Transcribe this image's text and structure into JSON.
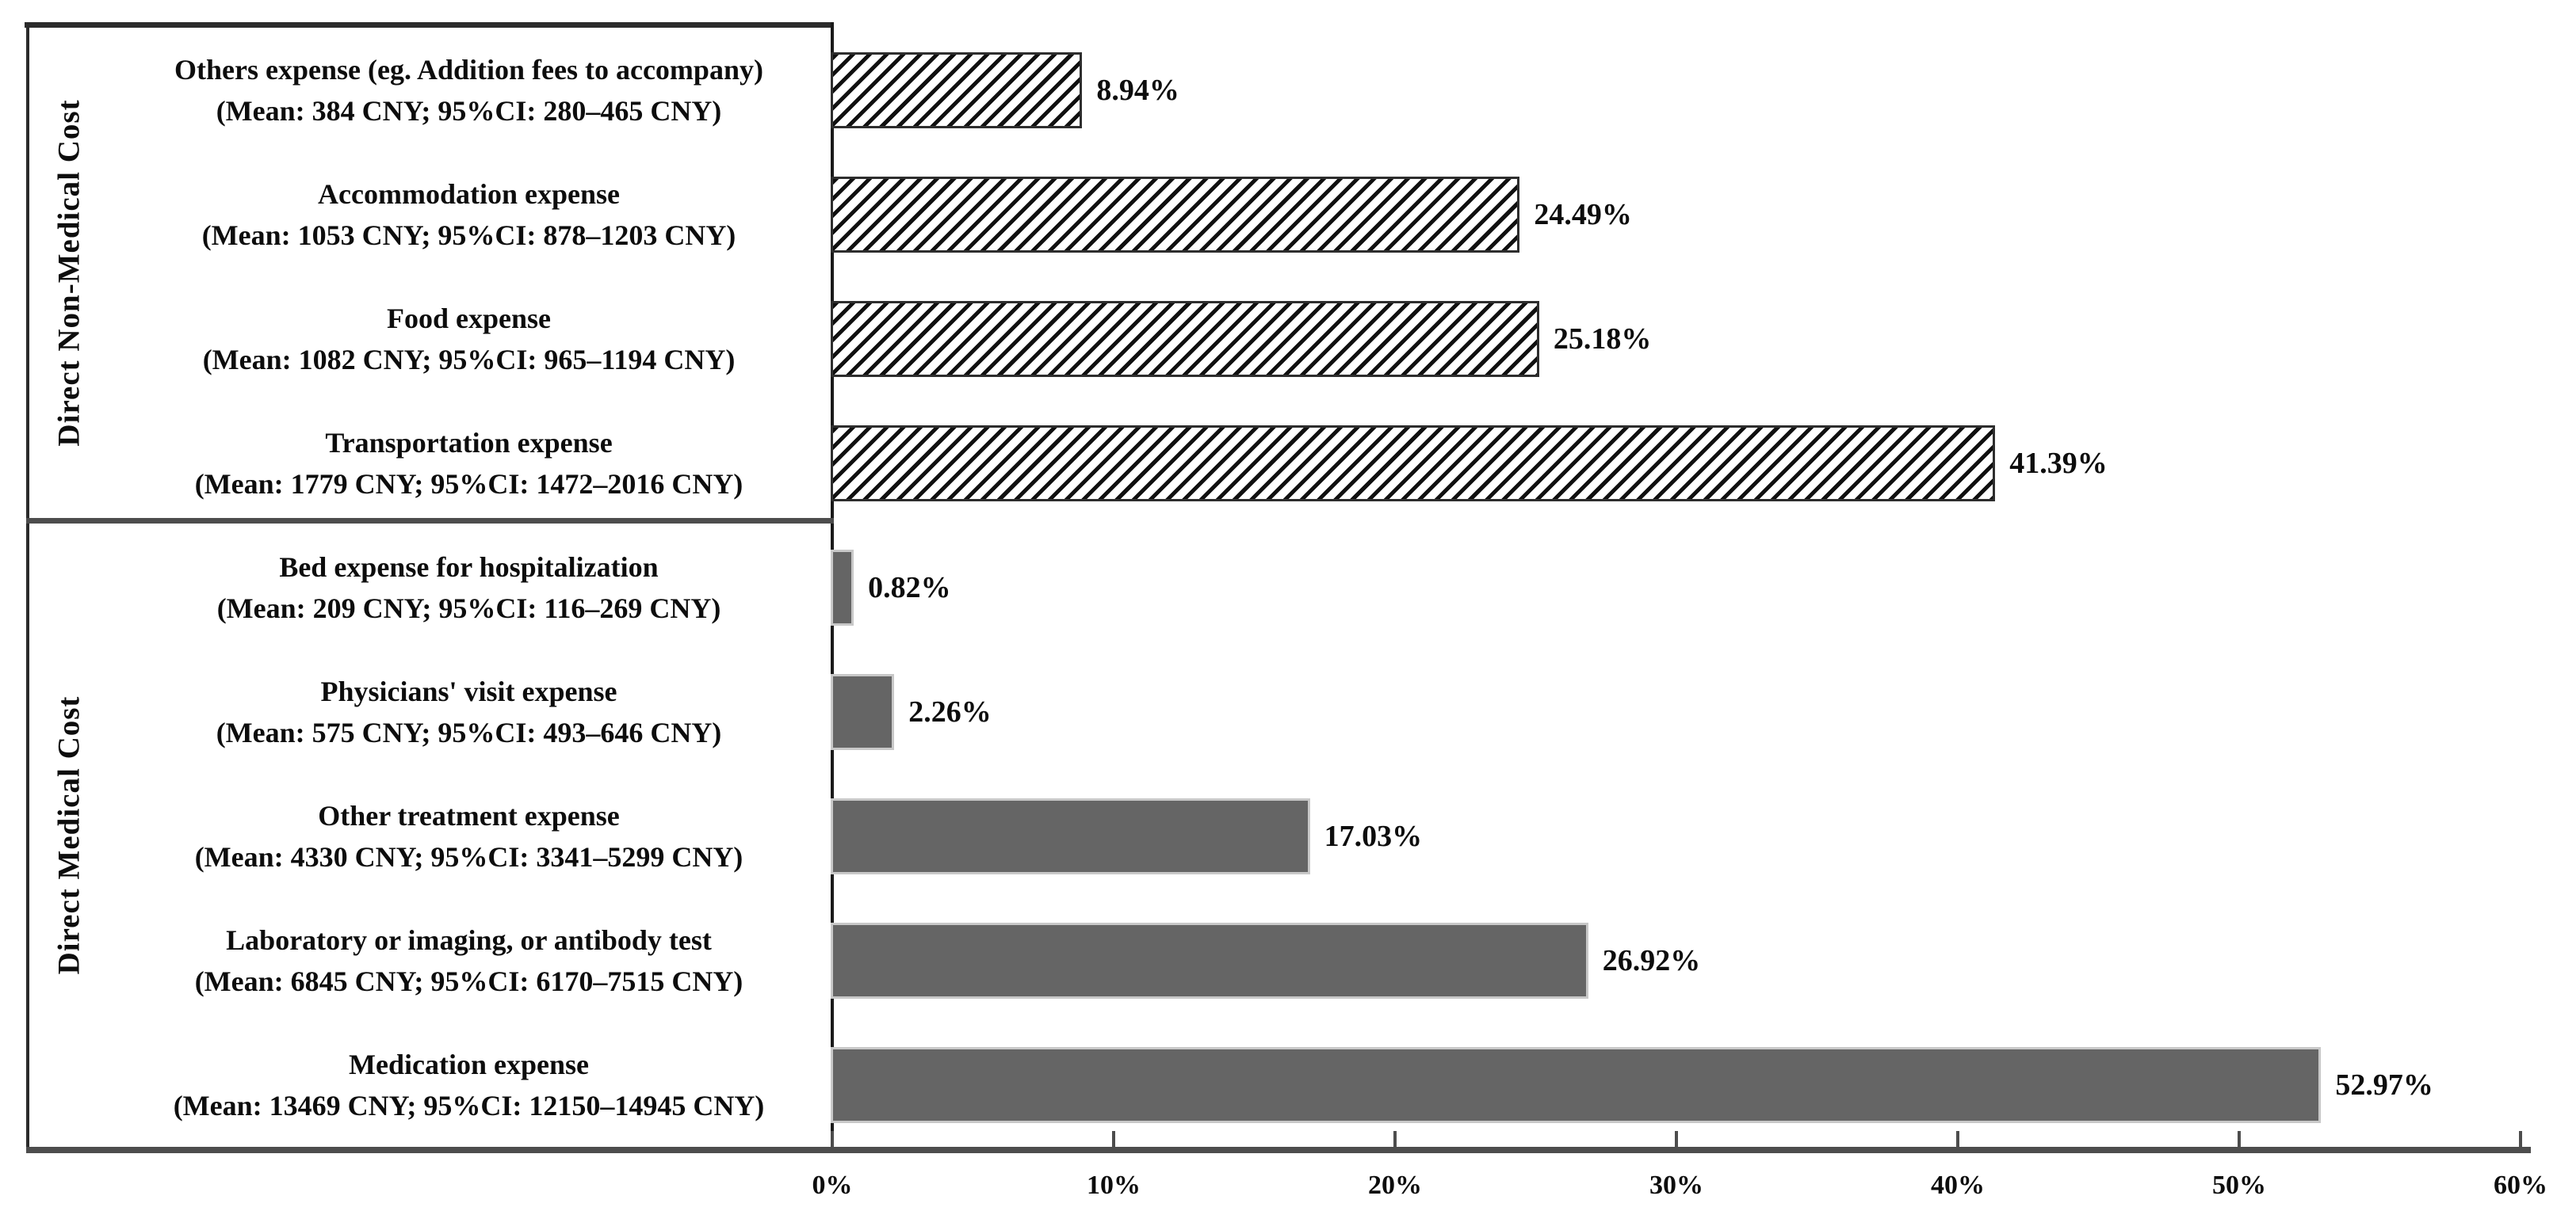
{
  "chart_data": {
    "type": "bar",
    "orientation": "horizontal",
    "title": "",
    "x_axis": {
      "min": 0,
      "max": 60,
      "unit": "%",
      "tick_labels": [
        "0%",
        "10%",
        "20%",
        "30%",
        "40%",
        "50%",
        "60%"
      ],
      "grid": false
    },
    "groups": [
      {
        "name": "Direct Non-Medical Cost",
        "bar_style": "hatched",
        "items": [
          {
            "name": "Others expense (eg. Addition fees to accompany)",
            "stats": "(Mean: 384 CNY; 95%CI: 280–465 CNY)",
            "value": 8.94,
            "value_label": "8.94%"
          },
          {
            "name": "Accommodation expense",
            "stats": "(Mean: 1053 CNY; 95%CI: 878–1203 CNY)",
            "value": 24.49,
            "value_label": "24.49%"
          },
          {
            "name": "Food expense",
            "stats": "(Mean: 1082 CNY; 95%CI: 965–1194 CNY)",
            "value": 25.18,
            "value_label": "25.18%"
          },
          {
            "name": "Transportation expense",
            "stats": "(Mean: 1779 CNY; 95%CI: 1472–2016 CNY)",
            "value": 41.39,
            "value_label": "41.39%"
          }
        ]
      },
      {
        "name": "Direct Medical Cost",
        "bar_style": "solid",
        "items": [
          {
            "name": "Bed expense for hospitalization",
            "stats": "(Mean: 209 CNY; 95%CI: 116–269 CNY)",
            "value": 0.82,
            "value_label": "0.82%"
          },
          {
            "name": "Physicians' visit expense",
            "stats": "(Mean: 575 CNY; 95%CI: 493–646 CNY)",
            "value": 2.26,
            "value_label": "2.26%"
          },
          {
            "name": "Other treatment expense",
            "stats": "(Mean: 4330 CNY; 95%CI: 3341–5299 CNY)",
            "value": 17.03,
            "value_label": "17.03%"
          },
          {
            "name": "Laboratory or imaging, or antibody test",
            "stats": "(Mean: 6845 CNY; 95%CI: 6170–7515 CNY)",
            "value": 26.92,
            "value_label": "26.92%"
          },
          {
            "name": "Medication expense",
            "stats": "(Mean: 13469 CNY; 95%CI: 12150–14945 CNY)",
            "value": 52.97,
            "value_label": "52.97%"
          }
        ]
      }
    ],
    "colors": {
      "solid_bar": "#656565",
      "solid_bar_border": "#c8c8c8",
      "hatch_stripe": "#101010",
      "hatch_background": "#ffffff",
      "axis_line": "#4d4d4d",
      "panel_border": "#2b2b2b",
      "text": "#0d0d0d",
      "background": "#ffffff"
    }
  }
}
